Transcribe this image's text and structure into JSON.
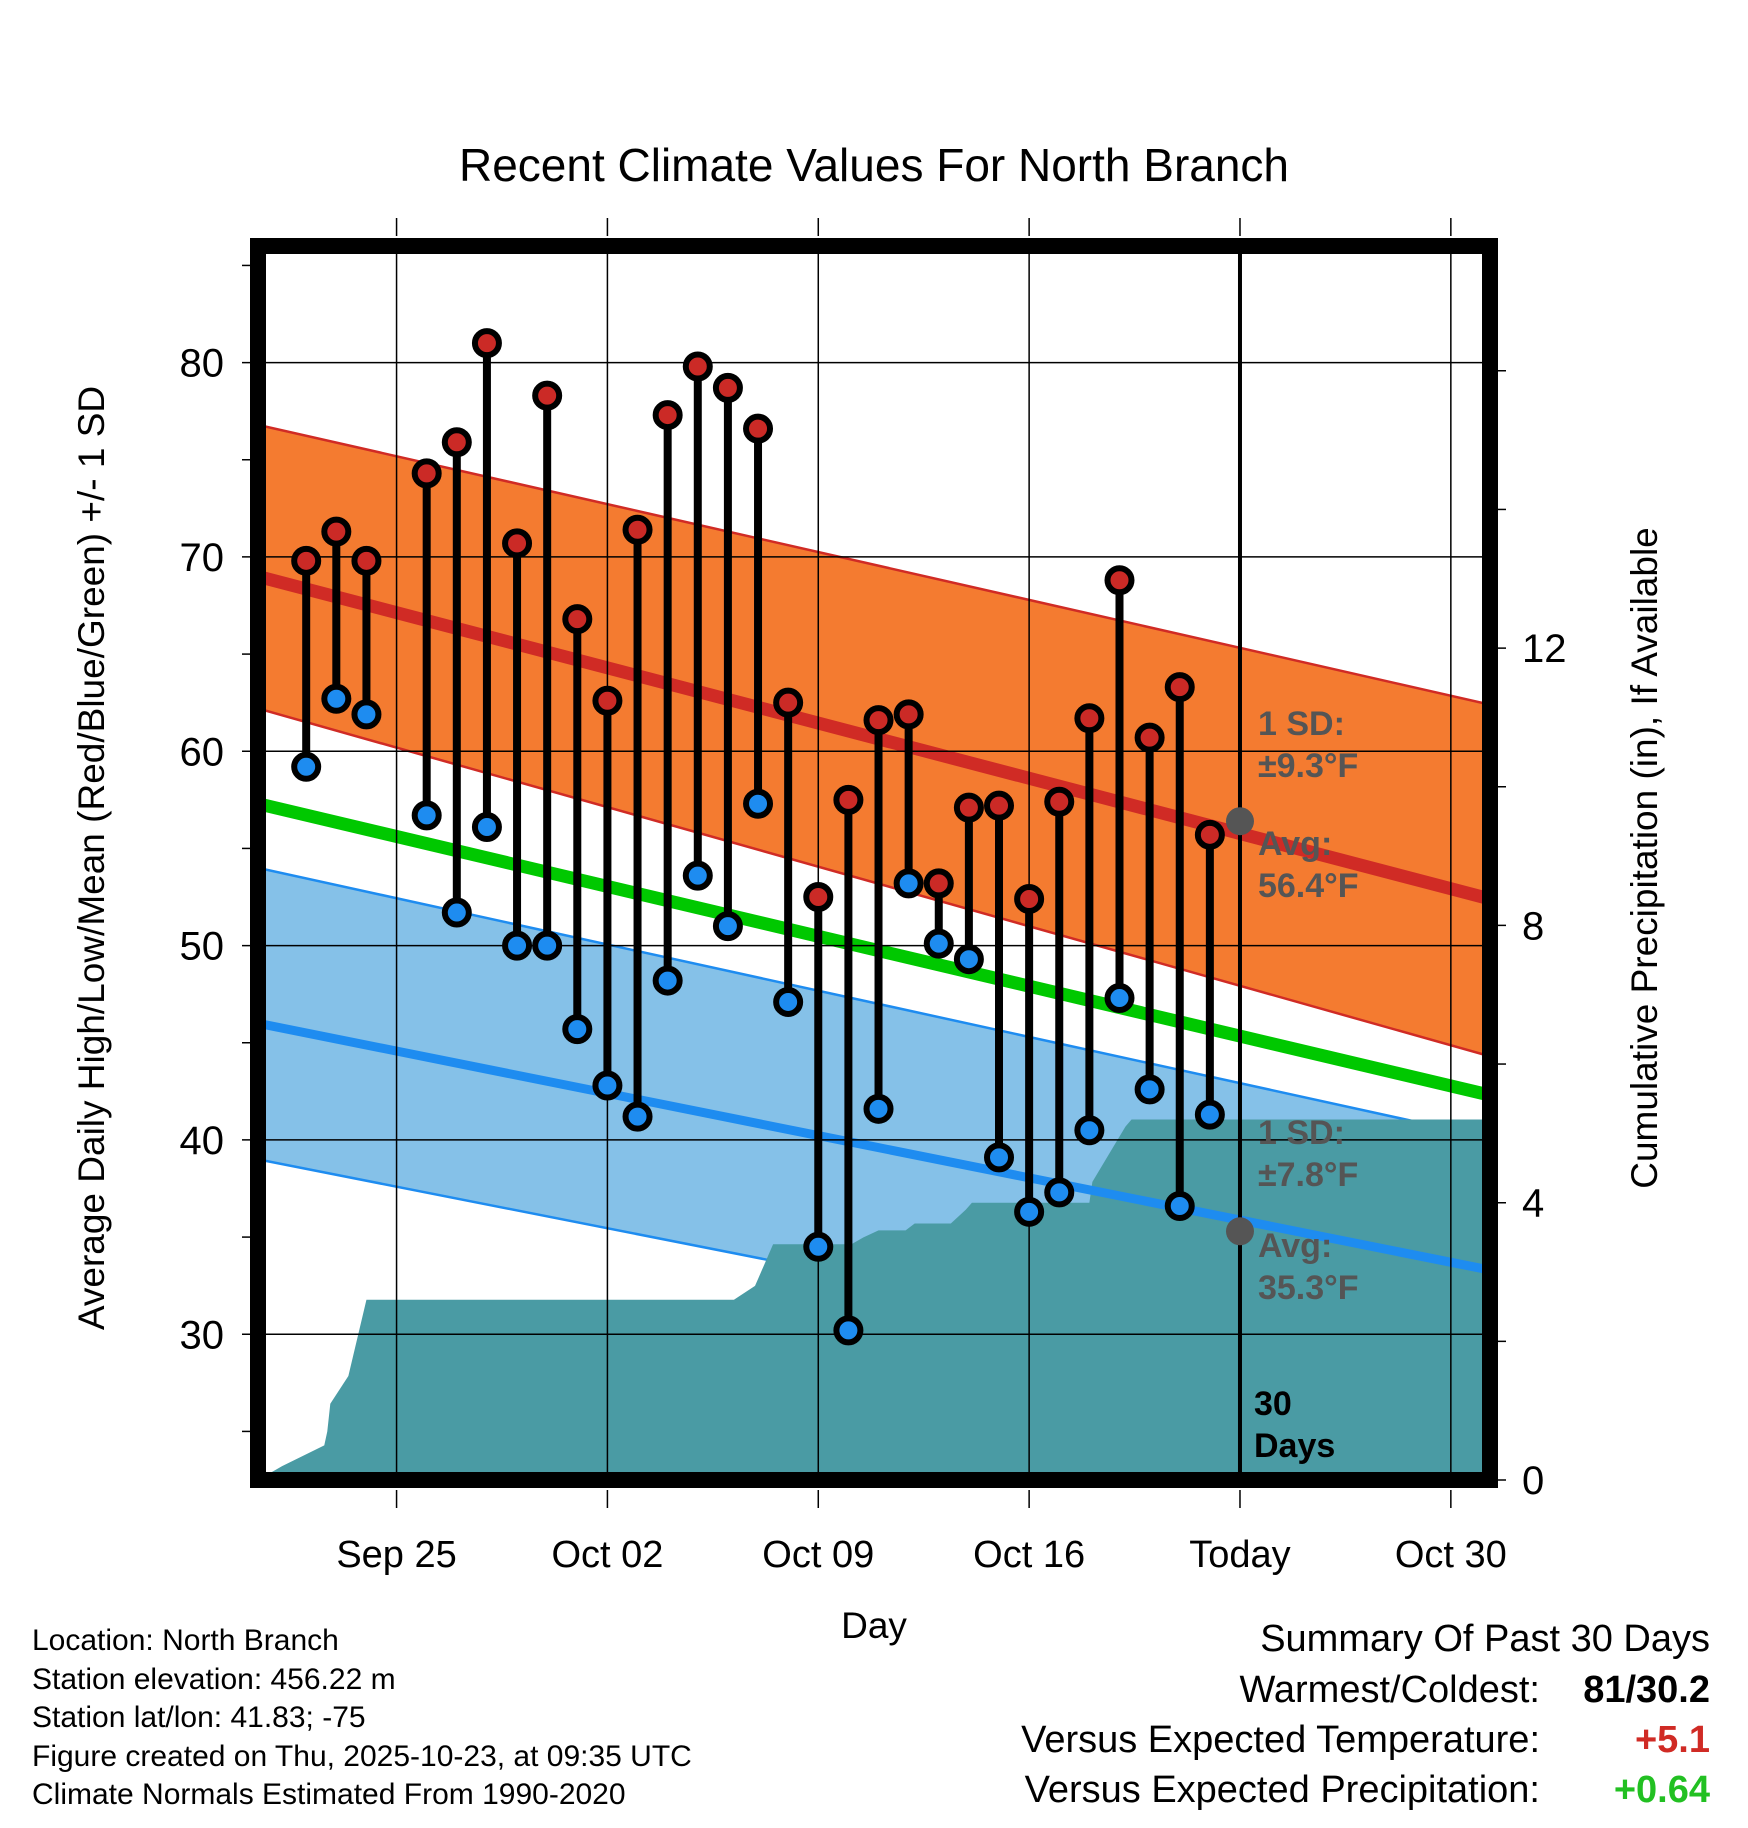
{
  "chart_data": {
    "type": "line",
    "title": "Recent Climate Values For North Branch",
    "xlabel": "Day",
    "ylabel": "Average Daily High/Low/Mean (Red/Blue/Green) +/- 1 SD",
    "y2label": "Cumulative Precipitation (in), If Available",
    "ylim": [
      22.5,
      86
    ],
    "y2lim": [
      0,
      17.8
    ],
    "xlim_days": [
      -29.6,
      11.3
    ],
    "x_ticks": [
      {
        "day": -25,
        "label": "Sep 25"
      },
      {
        "day": -18,
        "label": "Oct 02"
      },
      {
        "day": -11,
        "label": "Oct 09"
      },
      {
        "day": -4,
        "label": "Oct 16"
      },
      {
        "day": 3,
        "label": "Today"
      },
      {
        "day": 10,
        "label": "Oct 30"
      }
    ],
    "y_ticks": [
      30,
      40,
      50,
      60,
      70,
      80
    ],
    "y2_ticks": [
      0,
      4,
      8,
      12
    ],
    "today_day": 3,
    "today_label": "Today",
    "normals": {
      "high_start": 69.0,
      "high_end": 52.4,
      "high_sd": 7.8,
      "high_sd_end": 10.0,
      "mean_start": 57.3,
      "mean_end": 42.3,
      "low_start": 46.0,
      "low_end": 33.3,
      "low_sd": 7.0,
      "low_sd_end": 6.8
    },
    "days": [
      -28,
      -27,
      -26,
      -25,
      -24,
      -23,
      -22,
      -21,
      -20,
      -19,
      -18,
      -17,
      -16,
      -15,
      -14,
      -13,
      -12,
      -11,
      -10,
      -9,
      -8,
      -7,
      -6,
      -5,
      -4,
      -3,
      -2,
      -1,
      0,
      1,
      2
    ],
    "highs": [
      69.8,
      71.3,
      69.8,
      null,
      74.3,
      75.9,
      81.0,
      70.7,
      78.3,
      66.8,
      62.6,
      71.4,
      77.3,
      79.8,
      78.7,
      76.6,
      62.5,
      52.5,
      57.5,
      61.6,
      61.9,
      53.2,
      57.1,
      57.2,
      52.4,
      57.4,
      61.7,
      68.8,
      60.7,
      63.3,
      55.7
    ],
    "lows": [
      59.2,
      62.7,
      61.9,
      null,
      56.7,
      51.7,
      56.1,
      50.0,
      50.0,
      45.7,
      42.8,
      41.2,
      48.2,
      53.6,
      51.0,
      57.3,
      47.1,
      34.5,
      30.2,
      41.6,
      53.2,
      50.1,
      49.3,
      39.1,
      36.3,
      37.3,
      40.5,
      47.3,
      42.6,
      36.6,
      41.3
    ],
    "precip": {
      "x": [
        -29.6,
        -28.8,
        -27.4,
        -27.3,
        -27.2,
        -26.6,
        -26.0,
        -20.0,
        -14.2,
        -13.8,
        -13.1,
        -13.0,
        -12.5,
        -9.9,
        -9.5,
        -9.0,
        -8.1,
        -7.8,
        -6.6,
        -6.1,
        -5.9,
        -4.6,
        -2.0,
        -1.9,
        -0.8,
        -0.6,
        0.3,
        2.3,
        3.0,
        11.3
      ],
      "cum": [
        0.0,
        0.2,
        0.5,
        0.7,
        1.1,
        1.5,
        2.6,
        2.6,
        2.6,
        2.6,
        2.8,
        2.9,
        3.4,
        3.4,
        3.5,
        3.6,
        3.6,
        3.7,
        3.7,
        3.9,
        4.0,
        4.0,
        4.0,
        4.3,
        5.1,
        5.2,
        5.2,
        5.2,
        5.2,
        5.2
      ]
    },
    "annotations": {
      "high_sd_label": [
        "1 SD:",
        "±9.3°F"
      ],
      "high_avg_label": [
        "Avg:",
        "56.4°F"
      ],
      "high_avg_value": 56.4,
      "low_sd_label": [
        "1 SD:",
        "±7.8°F"
      ],
      "low_avg_label": [
        "Avg:",
        "35.3°F"
      ],
      "low_avg_value": 35.3,
      "days_label": [
        "30",
        "Days"
      ]
    },
    "colors": {
      "high_band": "#F47B30",
      "high_line": "#D02B25",
      "low_band": "#85C1E8",
      "low_line": "#1E8CF0",
      "mean_line": "#00C800",
      "precip": "#4A9BA4",
      "high_dot": "#CB2A26",
      "low_dot": "#1E8CF0",
      "annotation": "#555555"
    }
  },
  "footer": {
    "location": "Location: North Branch",
    "elevation": "Station elevation: 456.22 m",
    "latlon": "Station lat/lon: 41.83; -75",
    "created": "Figure created on Thu, 2025-10-23, at 09:35 UTC",
    "normals": "Climate Normals Estimated From 1990-2020"
  },
  "summary": {
    "heading": "Summary Of Past 30 Days",
    "warmest_label": "Warmest/Coldest:",
    "warmest_value": "81/30.2",
    "temp_label": "Versus Expected Temperature:",
    "temp_value": "+5.1",
    "temp_color": "#D02B25",
    "precip_label": "Versus Expected Precipitation:",
    "precip_value": "+0.64",
    "precip_color": "#22C022"
  }
}
